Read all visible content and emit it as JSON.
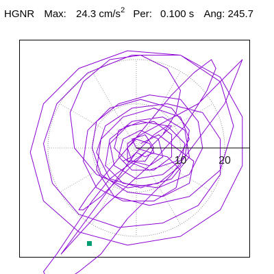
{
  "header": {
    "station": "HGNR",
    "max_label": "Max:",
    "max_value": "24.3 cm/s",
    "max_exp": "2",
    "per_label": "Per:",
    "per_value": "0.100 s",
    "ang_label": "Ang:",
    "ang_value": "245.7"
  },
  "chart_data": {
    "type": "polar-trace",
    "radial_ticks": [
      "10",
      "20"
    ],
    "radial_tick_values": [
      10,
      20
    ],
    "ring_values": [
      10,
      20
    ],
    "trace_color": "#8a00d4",
    "marker_color": "#009e73",
    "grid": "dotted",
    "trace_xy": [
      [
        1,
        1
      ],
      [
        5,
        3
      ],
      [
        9,
        0
      ],
      [
        13,
        -3
      ],
      [
        12,
        -8
      ],
      [
        6,
        -11
      ],
      [
        -2,
        -10
      ],
      [
        -8,
        -6
      ],
      [
        -10,
        0
      ],
      [
        -9,
        6
      ],
      [
        -4,
        10
      ],
      [
        3,
        12
      ],
      [
        10,
        11
      ],
      [
        14,
        6
      ],
      [
        15,
        0
      ],
      [
        12,
        -6
      ],
      [
        5,
        -9
      ],
      [
        -3,
        -8
      ],
      [
        -7,
        -4
      ],
      [
        -6,
        2
      ],
      [
        -1,
        6
      ],
      [
        6,
        7
      ],
      [
        11,
        4
      ],
      [
        12,
        -2
      ],
      [
        8,
        -7
      ],
      [
        1,
        -9
      ],
      [
        -6,
        -7
      ],
      [
        -9,
        -1
      ],
      [
        -7,
        5
      ],
      [
        -1,
        9
      ],
      [
        7,
        10
      ],
      [
        15,
        8
      ],
      [
        19,
        2
      ],
      [
        19,
        -6
      ],
      [
        14,
        -13
      ],
      [
        6,
        -17
      ],
      [
        -4,
        -18
      ],
      [
        -13,
        -15
      ],
      [
        -19,
        -8
      ],
      [
        -21,
        1
      ],
      [
        -18,
        10
      ],
      [
        -11,
        17
      ],
      [
        -1,
        21
      ],
      [
        10,
        21
      ],
      [
        19,
        16
      ],
      [
        24,
        7
      ],
      [
        24,
        -4
      ],
      [
        19,
        -14
      ],
      [
        10,
        -20
      ],
      [
        -2,
        -22
      ],
      [
        -13,
        -19
      ],
      [
        -21,
        -12
      ],
      [
        -24,
        -1
      ],
      [
        -21,
        10
      ],
      [
        -13,
        18
      ],
      [
        -2,
        22
      ],
      [
        10,
        21
      ],
      [
        19,
        15
      ],
      [
        22,
        5
      ],
      [
        19,
        -5
      ],
      [
        12,
        -11
      ],
      [
        3,
        -13
      ],
      [
        -5,
        -11
      ],
      [
        -9,
        -5
      ],
      [
        -8,
        2
      ],
      [
        -3,
        7
      ],
      [
        4,
        9
      ],
      [
        10,
        7
      ],
      [
        12,
        2
      ],
      [
        9,
        -3
      ],
      [
        3,
        -5
      ],
      [
        -2,
        -3
      ],
      [
        -2,
        1
      ],
      [
        1,
        3
      ],
      [
        14,
        10
      ],
      [
        24,
        20
      ],
      [
        20,
        10
      ],
      [
        8,
        -6
      ],
      [
        -2,
        -16
      ],
      [
        -8,
        -24
      ],
      [
        -13,
        -28
      ],
      [
        -16,
        -30
      ],
      [
        -20,
        -30
      ],
      [
        -21,
        -28
      ],
      [
        -18,
        -24
      ],
      [
        -14,
        -18
      ],
      [
        -10,
        -12
      ],
      [
        -6,
        -7
      ],
      [
        -2,
        -4
      ],
      [
        2,
        -1
      ],
      [
        6,
        3
      ],
      [
        9,
        8
      ],
      [
        10,
        13
      ],
      [
        7,
        18
      ],
      [
        1,
        21
      ],
      [
        -6,
        20
      ],
      [
        -12,
        15
      ],
      [
        -15,
        8
      ],
      [
        -14,
        0
      ],
      [
        -9,
        -6
      ],
      [
        -2,
        -9
      ],
      [
        5,
        -8
      ],
      [
        10,
        -4
      ],
      [
        11,
        1
      ],
      [
        7,
        5
      ],
      [
        1,
        6
      ],
      [
        -4,
        4
      ],
      [
        -5,
        0
      ],
      [
        -2,
        -3
      ],
      [
        2,
        -3
      ],
      [
        4,
        0
      ],
      [
        2,
        3
      ],
      [
        -1,
        2
      ],
      [
        0,
        0
      ],
      [
        3,
        -1
      ],
      [
        7,
        -2
      ],
      [
        10,
        -5
      ],
      [
        9,
        -9
      ],
      [
        4,
        -12
      ],
      [
        -3,
        -12
      ],
      [
        -9,
        -9
      ],
      [
        -12,
        -3
      ],
      [
        -11,
        4
      ],
      [
        -6,
        9
      ],
      [
        1,
        11
      ],
      [
        8,
        9
      ],
      [
        12,
        4
      ],
      [
        11,
        -2
      ],
      [
        6,
        -6
      ],
      [
        0,
        -7
      ],
      [
        -5,
        -4
      ],
      [
        -6,
        1
      ],
      [
        -2,
        5
      ],
      [
        4,
        6
      ],
      [
        8,
        3
      ],
      [
        8,
        -2
      ],
      [
        4,
        -5
      ],
      [
        -1,
        -5
      ],
      [
        -4,
        -2
      ],
      [
        -3,
        2
      ],
      [
        1,
        4
      ],
      [
        5,
        2
      ],
      [
        6,
        -2
      ],
      [
        3,
        -4
      ],
      [
        -1,
        -3
      ],
      [
        -2,
        0
      ],
      [
        0,
        2
      ],
      [
        3,
        1
      ],
      [
        4,
        -1
      ],
      [
        2,
        -2
      ],
      [
        0,
        -1
      ],
      [
        -17,
        -24
      ],
      [
        -7,
        -13
      ],
      [
        3,
        -4
      ],
      [
        11,
        5
      ],
      [
        16,
        13
      ],
      [
        18,
        18
      ],
      [
        17,
        20
      ],
      [
        13,
        17
      ],
      [
        8,
        12
      ],
      [
        3,
        6
      ],
      [
        -2,
        0
      ],
      [
        -7,
        -6
      ],
      [
        -11,
        -11
      ],
      [
        -13,
        -14
      ],
      [
        -12,
        -14
      ],
      [
        -8,
        -11
      ],
      [
        -3,
        -6
      ],
      [
        2,
        -1
      ],
      [
        6,
        3
      ],
      [
        8,
        5
      ],
      [
        7,
        5
      ],
      [
        4,
        3
      ],
      [
        1,
        0
      ],
      [
        -1,
        -2
      ],
      [
        -3,
        -3
      ]
    ]
  }
}
